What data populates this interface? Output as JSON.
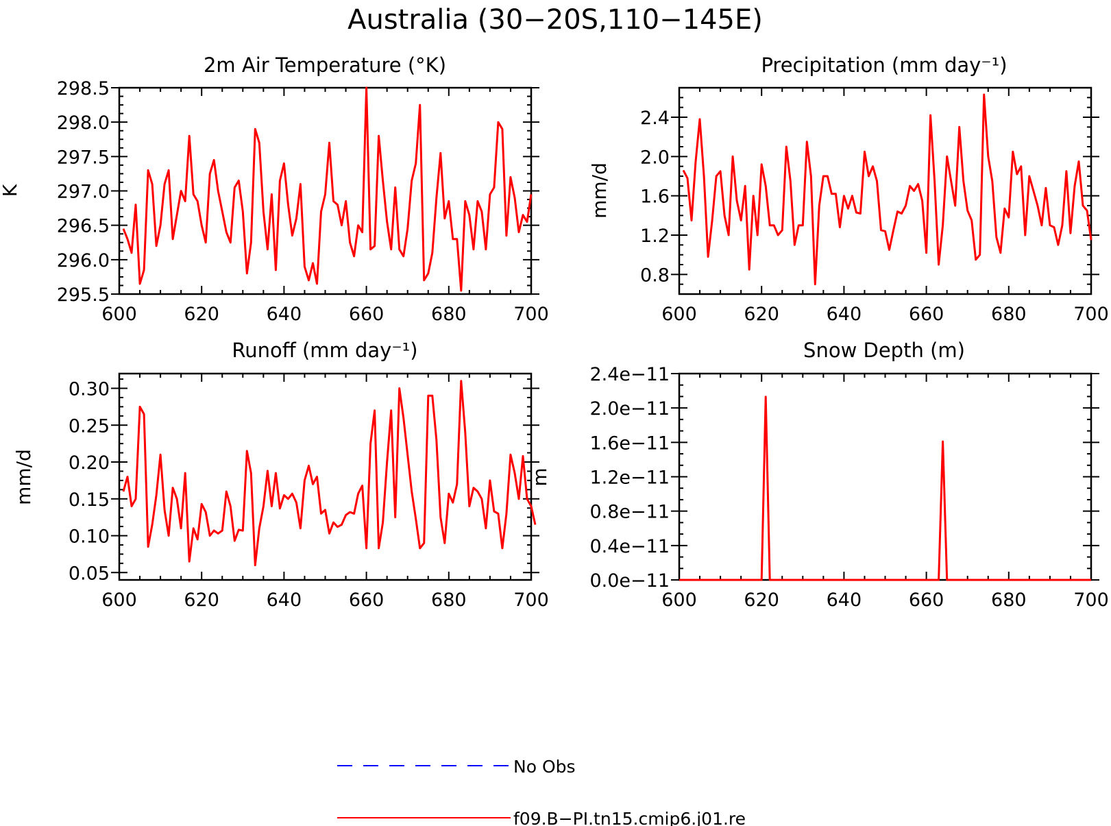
{
  "figure": {
    "title": "Australia (30−20S,110−145E)"
  },
  "colors": {
    "model": "#ff0000",
    "obs": "#0000ff",
    "frame": "#000000"
  },
  "legend": {
    "entries": [
      {
        "label": "No Obs",
        "color": "#0000ff",
        "style": "dashed"
      },
      {
        "label": "f09.B−PI.tn15.cmip6.j01.re",
        "color": "#ff0000",
        "style": "solid"
      }
    ]
  },
  "chart_data": [
    {
      "type": "line",
      "title": "2m Air Temperature (°K)",
      "xlabel": "",
      "ylabel": "K",
      "xlim": [
        600,
        700
      ],
      "ylim": [
        295.5,
        298.5
      ],
      "xticks": [
        "600",
        "620",
        "640",
        "660",
        "680",
        "700"
      ],
      "yticks": [
        "295.5",
        "296.0",
        "296.5",
        "297.0",
        "297.5",
        "298.0",
        "298.5"
      ],
      "series": [
        {
          "x0": 601,
          "dx": 1,
          "values": [
            296.45,
            296.3,
            296.1,
            296.8,
            295.65,
            295.85,
            297.3,
            297.1,
            296.2,
            296.5,
            297.1,
            297.3,
            296.3,
            296.65,
            297.0,
            296.85,
            297.8,
            296.95,
            296.85,
            296.5,
            296.25,
            297.25,
            297.45,
            297.0,
            296.7,
            296.4,
            296.25,
            297.05,
            297.15,
            296.7,
            295.8,
            296.25,
            297.9,
            297.7,
            296.7,
            296.15,
            296.95,
            295.85,
            297.15,
            297.4,
            296.8,
            296.35,
            296.6,
            297.1,
            295.9,
            295.7,
            295.95,
            295.65,
            296.7,
            296.95,
            297.7,
            296.85,
            296.8,
            296.5,
            296.85,
            296.25,
            296.05,
            296.5,
            296.4,
            298.5,
            296.15,
            296.2,
            297.8,
            297.15,
            296.55,
            296.15,
            297.05,
            296.15,
            296.05,
            296.45,
            297.15,
            297.4,
            298.25,
            295.7,
            295.8,
            296.1,
            296.9,
            297.55,
            296.6,
            296.85,
            296.3,
            296.3,
            295.55,
            296.85,
            296.65,
            296.15,
            296.85,
            296.7,
            296.15,
            296.95,
            297.05,
            298.0,
            297.9,
            296.35,
            297.2,
            296.9,
            296.4,
            296.65,
            296.55,
            296.95
          ]
        }
      ]
    },
    {
      "type": "line",
      "title": "Precipitation (mm day⁻¹)",
      "xlabel": "",
      "ylabel": "mm/d",
      "xlim": [
        600,
        700
      ],
      "ylim": [
        0.6,
        2.7
      ],
      "xticks": [
        "600",
        "620",
        "640",
        "660",
        "680",
        "700"
      ],
      "yticks": [
        "0.8",
        "1.2",
        "1.6",
        "2.0",
        "2.4"
      ],
      "series": [
        {
          "x0": 601,
          "dx": 1,
          "values": [
            1.86,
            1.78,
            1.35,
            1.95,
            2.38,
            1.8,
            0.98,
            1.35,
            1.8,
            1.85,
            1.4,
            1.2,
            2.0,
            1.55,
            1.35,
            1.7,
            0.85,
            1.6,
            1.2,
            1.92,
            1.7,
            1.3,
            1.3,
            1.2,
            1.25,
            2.1,
            1.75,
            1.1,
            1.3,
            1.3,
            2.15,
            1.8,
            0.7,
            1.5,
            1.8,
            1.8,
            1.62,
            1.62,
            1.28,
            1.6,
            1.47,
            1.6,
            1.43,
            1.42,
            2.05,
            1.8,
            1.9,
            1.75,
            1.25,
            1.24,
            1.05,
            1.25,
            1.44,
            1.42,
            1.5,
            1.7,
            1.65,
            1.72,
            1.55,
            1.02,
            2.42,
            1.75,
            0.9,
            1.3,
            2.0,
            1.75,
            1.5,
            2.3,
            1.75,
            1.45,
            1.35,
            0.95,
            1.0,
            2.63,
            2.0,
            1.75,
            1.18,
            1.02,
            1.47,
            1.38,
            2.05,
            1.82,
            1.9,
            1.2,
            1.8,
            1.65,
            1.5,
            1.3,
            1.68,
            1.3,
            1.28,
            1.1,
            1.3,
            1.85,
            1.22,
            1.7,
            1.95,
            1.5,
            1.45,
            1.15
          ]
        }
      ]
    },
    {
      "type": "line",
      "title": "Runoff (mm day⁻¹)",
      "xlabel": "",
      "ylabel": "mm/d",
      "xlim": [
        600,
        700
      ],
      "ylim": [
        0.04,
        0.32
      ],
      "xticks": [
        "600",
        "620",
        "640",
        "660",
        "680",
        "700"
      ],
      "yticks": [
        "0.05",
        "0.10",
        "0.15",
        "0.20",
        "0.25",
        "0.30"
      ],
      "series": [
        {
          "x0": 601,
          "dx": 1,
          "values": [
            0.16,
            0.18,
            0.14,
            0.15,
            0.275,
            0.265,
            0.085,
            0.115,
            0.155,
            0.21,
            0.135,
            0.1,
            0.165,
            0.15,
            0.11,
            0.185,
            0.065,
            0.11,
            0.095,
            0.143,
            0.132,
            0.1,
            0.107,
            0.103,
            0.107,
            0.16,
            0.14,
            0.093,
            0.108,
            0.107,
            0.215,
            0.185,
            0.06,
            0.11,
            0.14,
            0.188,
            0.14,
            0.185,
            0.137,
            0.155,
            0.15,
            0.157,
            0.145,
            0.11,
            0.175,
            0.195,
            0.17,
            0.18,
            0.13,
            0.135,
            0.103,
            0.118,
            0.112,
            0.115,
            0.128,
            0.132,
            0.13,
            0.157,
            0.168,
            0.083,
            0.225,
            0.27,
            0.083,
            0.118,
            0.2,
            0.27,
            0.125,
            0.3,
            0.26,
            0.21,
            0.16,
            0.123,
            0.083,
            0.09,
            0.29,
            0.29,
            0.23,
            0.125,
            0.09,
            0.157,
            0.145,
            0.17,
            0.31,
            0.24,
            0.14,
            0.165,
            0.16,
            0.15,
            0.11,
            0.175,
            0.133,
            0.13,
            0.083,
            0.13,
            0.21,
            0.185,
            0.15,
            0.208,
            0.15,
            0.14,
            0.115
          ]
        }
      ]
    },
    {
      "type": "line",
      "title": "Snow Depth (m)",
      "xlabel": "",
      "ylabel": "m",
      "xlim": [
        600,
        700
      ],
      "ylim": [
        0,
        2.4
      ],
      "xticks": [
        "600",
        "620",
        "640",
        "660",
        "680",
        "700"
      ],
      "yticks": [
        "0.0e−11",
        "0.4e−11",
        "0.8e−11",
        "1.2e−11",
        "1.6e−11",
        "2.0e−11",
        "2.4e−11"
      ],
      "series": [
        {
          "x": [
            600,
            620,
            621,
            622,
            663,
            664,
            665,
            700
          ],
          "values": [
            0,
            0,
            2.13,
            0,
            0,
            1.61,
            0,
            0
          ]
        }
      ]
    }
  ]
}
